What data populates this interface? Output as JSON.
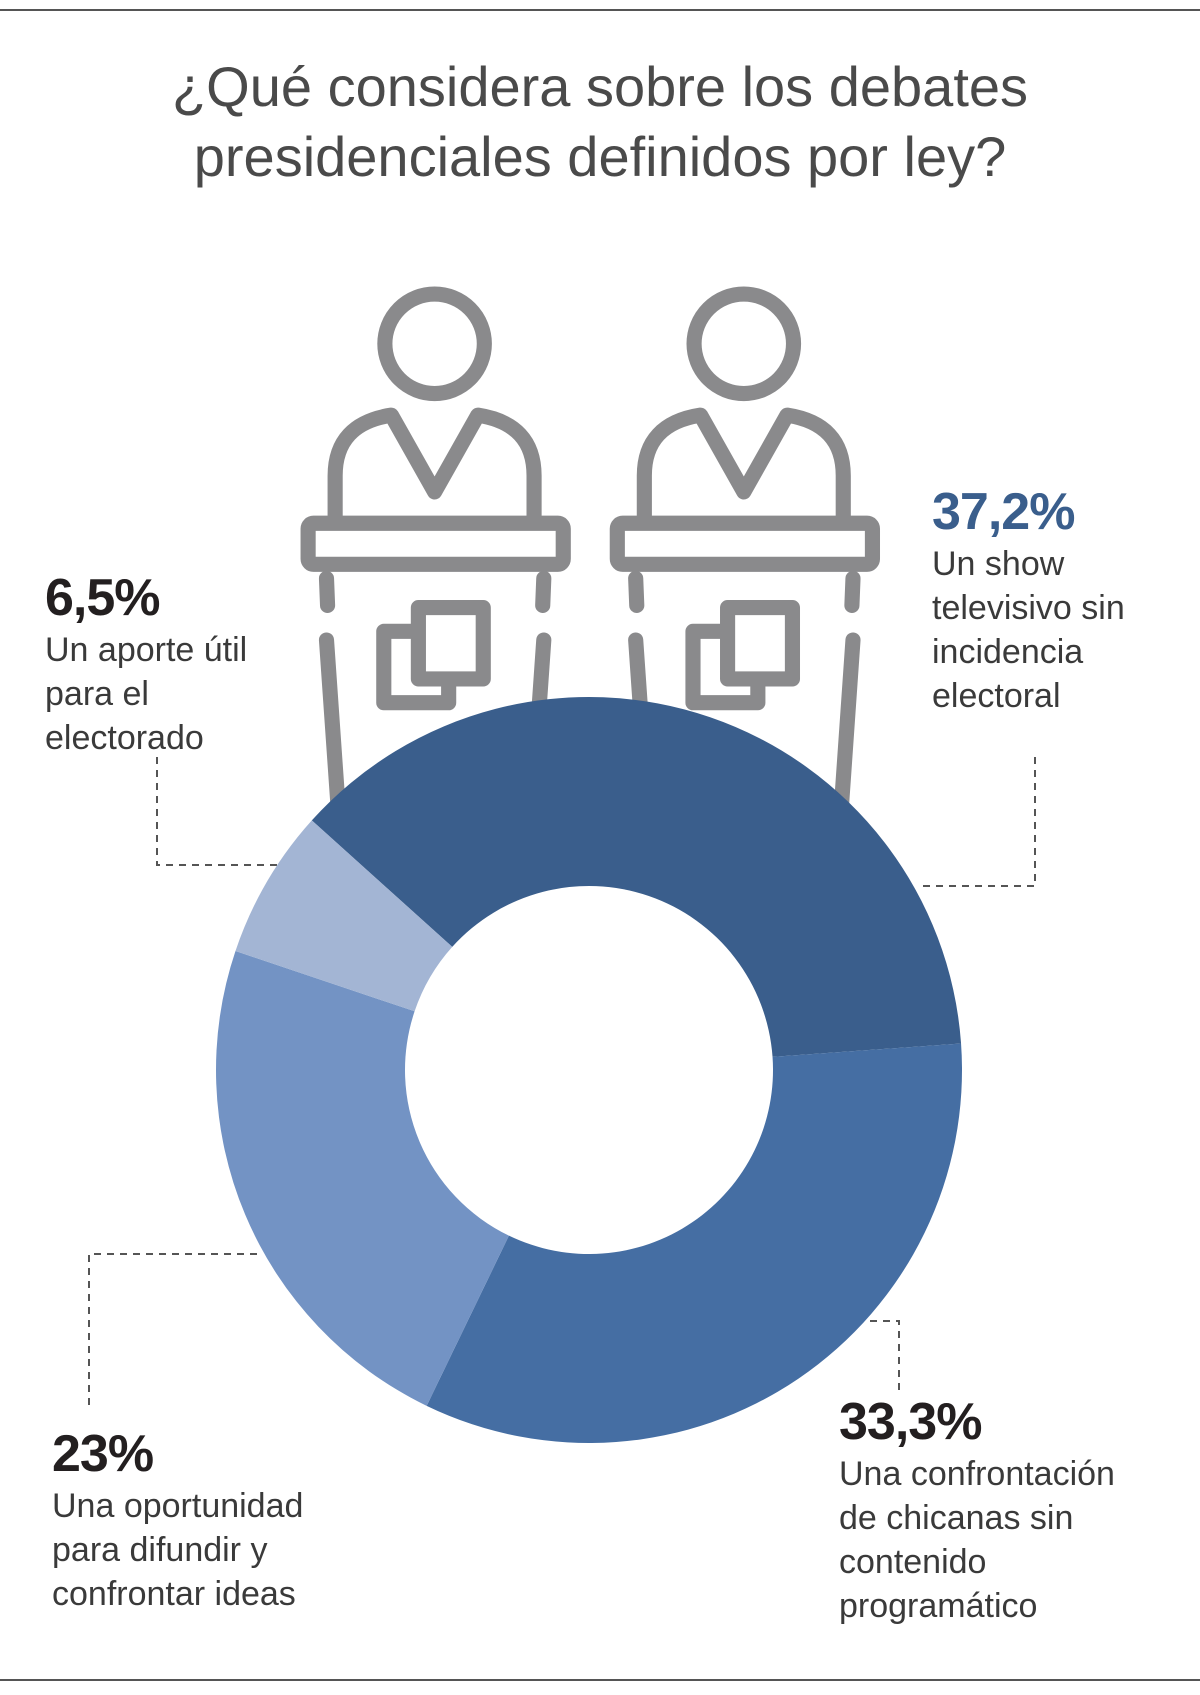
{
  "chart_data": {
    "type": "donut",
    "title": "¿Qué considera sobre los debates presidenciales definidos por ley?",
    "categories": [
      "Un show televisivo sin incidencia electoral",
      "Una confrontación de chicanas sin contenido programático",
      "Una oportunidad para difundir y confrontar ideas",
      "Un aporte útil para el electorado"
    ],
    "values": [
      37.2,
      33.3,
      23,
      6.5
    ],
    "value_labels": [
      "37,2%",
      "33,3%",
      "23%",
      "6,5%"
    ],
    "colors": [
      "#3a5e8c",
      "#456ea3",
      "#7393c4",
      "#a3b5d4"
    ]
  }
}
